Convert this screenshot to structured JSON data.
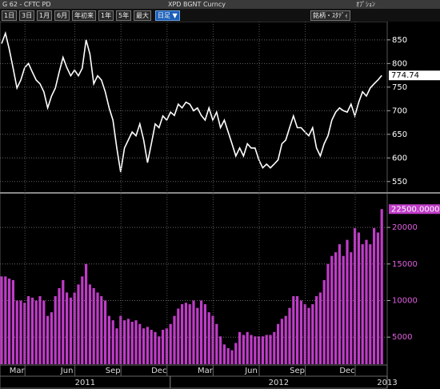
{
  "header": {
    "left": "G 62 - CFTC PD",
    "title": "XPD BGNT Curncy",
    "options": "ｵﾌﾟｼｮﾝ"
  },
  "toolbar": {
    "buttons": [
      "1日",
      "3日",
      "1月",
      "6月",
      "年初来",
      "1年",
      "5年",
      "最大"
    ],
    "active": "日足 ▼",
    "studies": "銘柄・ｽﾀﾃﾞｨ"
  },
  "chart_data": [
    {
      "type": "line",
      "color": "#ffffff",
      "values": [
        842,
        864,
        830,
        790,
        748,
        765,
        791,
        800,
        782,
        765,
        757,
        740,
        706,
        731,
        748,
        782,
        813,
        791,
        774,
        786,
        774,
        790,
        850,
        820,
        757,
        774,
        765,
        740,
        706,
        680,
        621,
        570,
        621,
        638,
        655,
        647,
        672,
        638,
        590,
        630,
        672,
        664,
        689,
        680,
        697,
        690,
        714,
        706,
        718,
        714,
        700,
        706,
        690,
        680,
        706,
        680,
        697,
        664,
        680,
        655,
        630,
        604,
        621,
        604,
        630,
        621,
        621,
        596,
        579,
        587,
        579,
        587,
        596,
        630,
        638,
        664,
        689,
        664,
        664,
        655,
        647,
        664,
        621,
        604,
        630,
        647,
        680,
        697,
        706,
        700,
        697,
        714,
        689,
        718,
        740,
        731,
        748,
        757,
        765,
        774.74
      ],
      "ylim": [
        531,
        887
      ],
      "yticks": [
        550,
        600,
        650,
        700,
        750,
        800,
        850
      ],
      "grid": true
    },
    {
      "type": "bar",
      "color": "#c03cc8",
      "values": [
        13300,
        13300,
        13000,
        12800,
        10000,
        10000,
        9700,
        10600,
        10400,
        10000,
        10600,
        10000,
        7900,
        8400,
        10600,
        11700,
        12800,
        11100,
        10400,
        11100,
        12200,
        13300,
        15000,
        12200,
        11700,
        11100,
        10600,
        10000,
        7900,
        7300,
        6200,
        7900,
        7300,
        7500,
        7100,
        7300,
        6800,
        6200,
        6400,
        6000,
        5700,
        5100,
        6000,
        6200,
        6800,
        7900,
        8900,
        9500,
        9700,
        9500,
        10000,
        9000,
        10000,
        9500,
        8400,
        7900,
        6800,
        5100,
        4000,
        3500,
        3200,
        4200,
        5700,
        5300,
        5700,
        5300,
        5100,
        5100,
        5100,
        5300,
        5300,
        5700,
        6800,
        7500,
        7900,
        9000,
        10600,
        10600,
        10000,
        9500,
        9000,
        9500,
        10600,
        11100,
        12800,
        15000,
        16100,
        16600,
        17700,
        16100,
        18300,
        16600,
        19900,
        19300,
        17700,
        18300,
        17700,
        19900,
        19300,
        22500
      ],
      "value_labels": [
        null,
        null,
        null,
        null,
        null,
        null,
        null,
        null,
        null,
        null,
        null,
        null,
        null,
        null,
        null,
        null,
        null,
        null,
        null,
        null,
        null,
        null,
        null,
        null,
        null,
        null,
        null,
        null,
        null,
        null,
        null,
        null,
        null,
        null,
        null,
        null,
        null,
        null,
        null,
        null,
        null,
        null,
        null,
        null,
        null,
        null,
        null,
        null,
        null,
        null,
        null,
        null,
        null,
        null,
        null,
        null,
        null,
        null,
        null,
        null,
        null,
        null,
        null,
        null,
        null,
        null,
        null,
        null,
        null,
        null,
        null,
        null,
        null,
        null,
        null,
        null,
        null,
        null,
        null,
        null,
        null,
        null,
        null,
        null,
        null,
        null,
        null,
        null,
        null,
        null,
        null,
        null,
        null,
        null,
        null,
        null,
        null,
        null,
        null,
        "22500.0000"
      ],
      "categories": [
        null,
        null,
        null,
        null,
        "Mar",
        null,
        null,
        null,
        null,
        null,
        null,
        null,
        null,
        null,
        null,
        null,
        null,
        "Jun",
        null,
        null,
        null,
        null,
        null,
        null,
        null,
        null,
        null,
        null,
        null,
        "Sep",
        null,
        null,
        null,
        null,
        null,
        null,
        null,
        null,
        null,
        null,
        null,
        "Dec",
        null,
        null,
        null,
        null,
        null,
        null,
        null,
        null,
        null,
        null,
        null,
        "Mar",
        null,
        null,
        null,
        null,
        null,
        null,
        null,
        null,
        null,
        null,
        null,
        "Jun",
        null,
        null,
        null,
        null,
        null,
        null,
        null,
        null,
        null,
        null,
        null,
        "Sep",
        null,
        null,
        null,
        null,
        null,
        null,
        null,
        null,
        null,
        null,
        null,
        null,
        "Dec",
        null,
        null,
        null,
        null,
        null,
        null,
        null,
        null,
        null
      ],
      "x_groups": [
        "2011",
        "2012",
        "2013"
      ],
      "ylim": [
        1300,
        24500
      ],
      "yticks": [
        5000,
        10000,
        15000,
        20000
      ],
      "grid": true
    }
  ]
}
